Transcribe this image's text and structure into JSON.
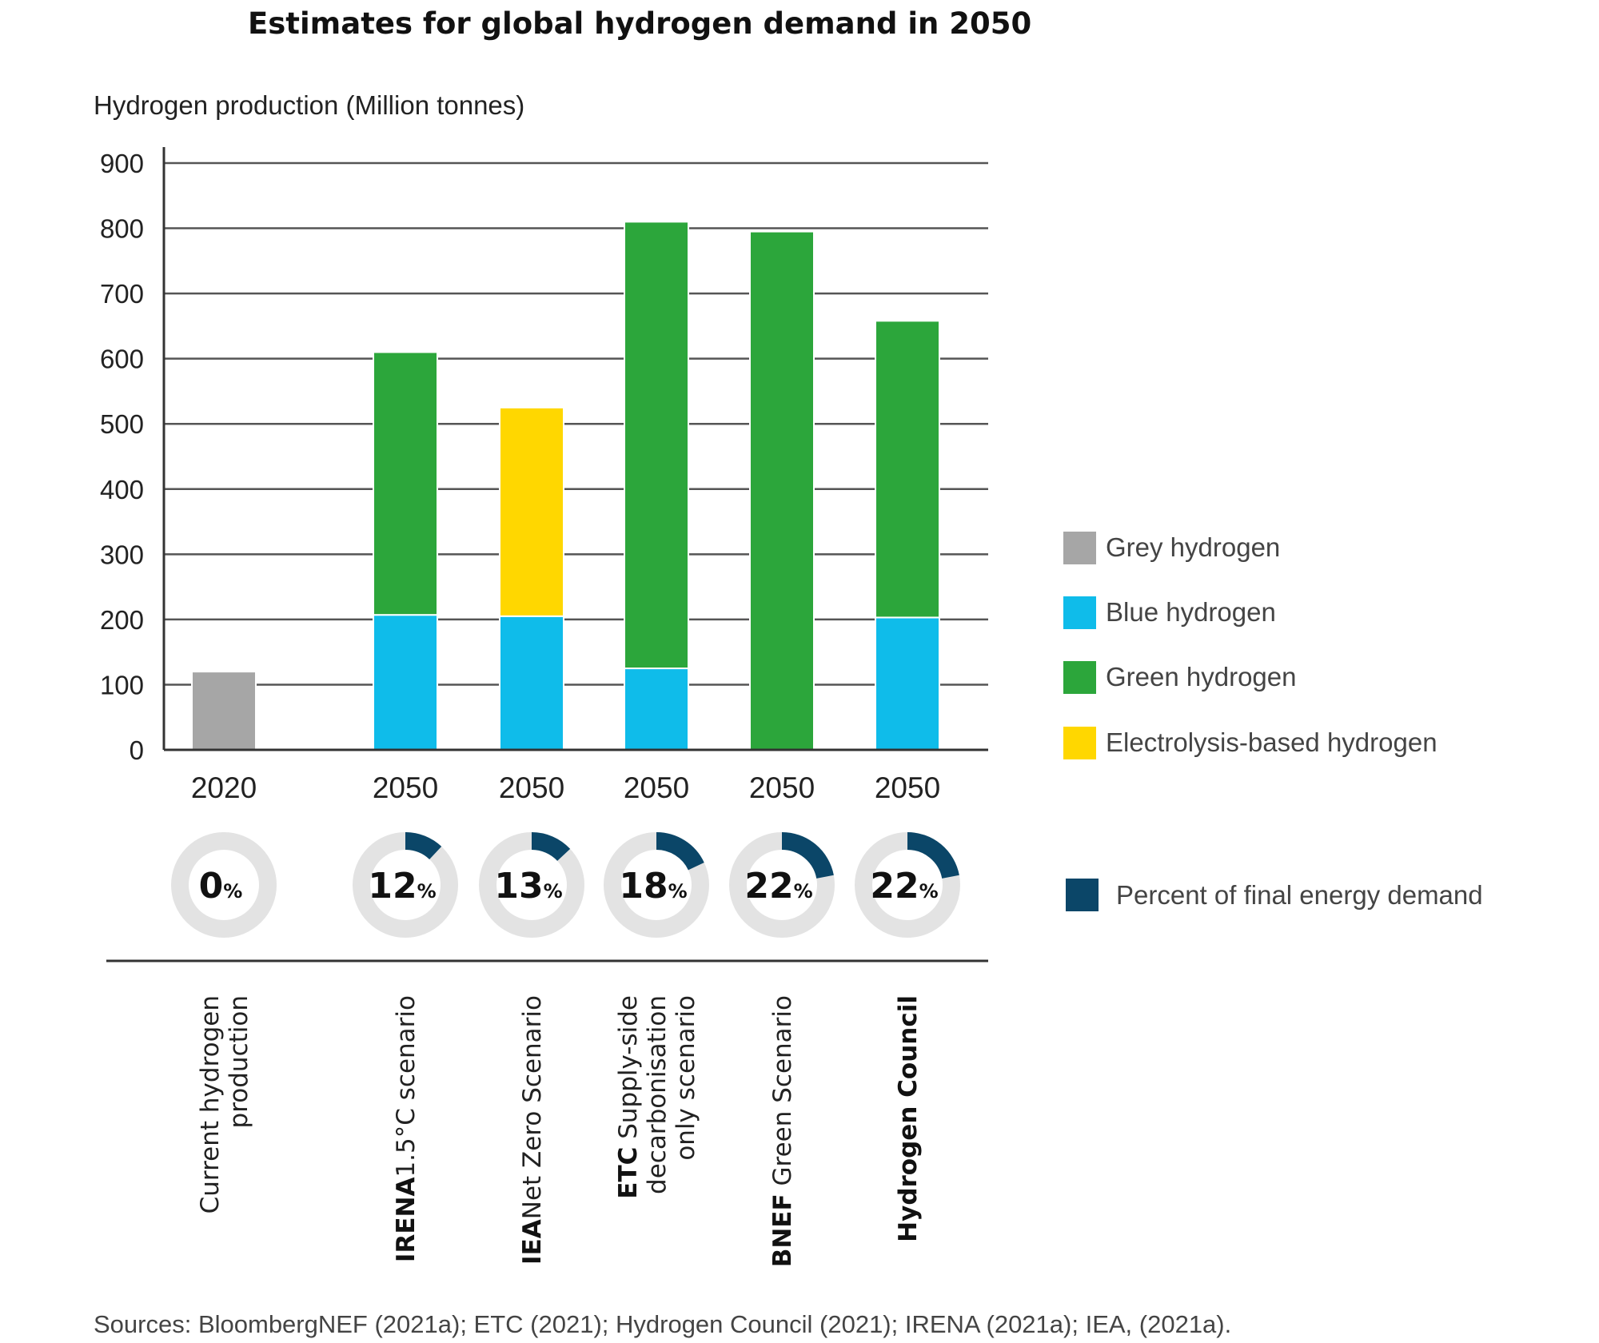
{
  "chart_data": {
    "type": "bar",
    "stacked": true,
    "title": "Estimates for global hydrogen demand in 2050",
    "ylabel": "Hydrogen production (Million tonnes)",
    "ylim": [
      0,
      900
    ],
    "yticks": [
      0,
      100,
      200,
      300,
      400,
      500,
      600,
      700,
      800,
      900
    ],
    "grid": true,
    "categories": [
      "2020",
      "2050",
      "2050",
      "2050",
      "2050",
      "2050"
    ],
    "scenario_labels": [
      {
        "bold": "",
        "lines": [
          "Current hydrogen",
          "production"
        ]
      },
      {
        "bold": "IRENA",
        "lines": [
          "1.5°C scenario"
        ]
      },
      {
        "bold": "IEA",
        "lines": [
          "Net Zero Scenario"
        ]
      },
      {
        "bold": "ETC",
        "lines": [
          " Supply-side",
          "decarbonisation",
          "only scenario"
        ]
      },
      {
        "bold": "BNEF",
        "lines": [
          " Green Scenario"
        ]
      },
      {
        "bold": "Hydrogen Council",
        "lines": []
      }
    ],
    "series": [
      {
        "name": "Grey hydrogen",
        "color": "#a6a6a6",
        "values": [
          120,
          0,
          0,
          0,
          0,
          0
        ]
      },
      {
        "name": "Blue hydrogen",
        "color": "#0fbcea",
        "values": [
          0,
          207,
          205,
          125,
          0,
          203
        ]
      },
      {
        "name": "Green hydrogen",
        "color": "#2ca63b",
        "values": [
          0,
          403,
          0,
          685,
          795,
          455
        ]
      },
      {
        "name": "Electrolysis-based hydrogen",
        "color": "#ffd700",
        "values": [
          0,
          0,
          320,
          0,
          0,
          0
        ]
      }
    ],
    "percent_final_energy_demand": {
      "name": "Percent of final energy demand",
      "color": "#0b4668",
      "ring_color": "#e3e3e3",
      "values": [
        0,
        12,
        13,
        18,
        22,
        22
      ],
      "labels": [
        "0",
        "12",
        "13",
        "18",
        "22",
        "22"
      ],
      "unit": "%"
    },
    "legend_position": "right"
  },
  "source": "Sources: BloombergNEF (2021a); ETC (2021); Hydrogen Council (2021); IRENA (2021a); IEA, (2021a)."
}
